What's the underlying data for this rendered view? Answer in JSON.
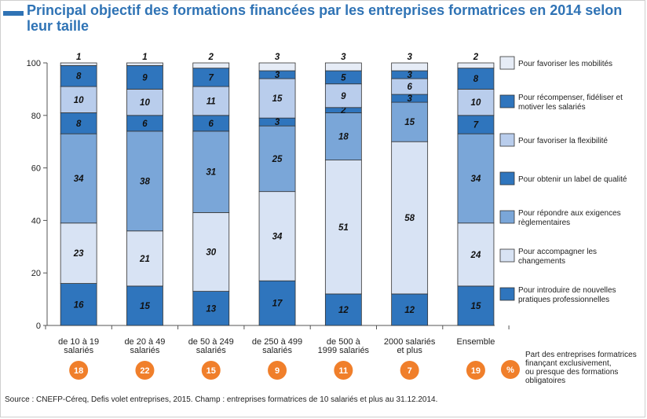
{
  "title": "Principal objectif des formations financées par les entreprises formatrices en 2014 selon leur taille",
  "source": "Source : CNEFP-Céreq, Defis volet entreprises, 2015. Champ : entreprises formatrices de 10 salariés et plus au 31.12.2014.",
  "colors": {
    "dark_blue": "#2f75bd",
    "mid_blue": "#7aa6d8",
    "light_blue": "#b9cdec",
    "pale_blue": "#d8e3f4",
    "badge": "#f07f2b"
  },
  "badge_note": {
    "symbol": "%",
    "lines": [
      "Part des entreprises formatrices",
      "finançant exclusivement,",
      "ou presque des formations",
      "obligatoires"
    ]
  },
  "chart_data": {
    "type": "bar",
    "stacked": true,
    "ylim": [
      0,
      100
    ],
    "yticks": [
      0,
      20,
      40,
      60,
      80,
      100
    ],
    "grid": false,
    "legend_position": "right",
    "categories": [
      [
        "de 10 à 19",
        "salariés"
      ],
      [
        "de 20 à 49",
        "salariés"
      ],
      [
        "de 50 à 249",
        "salariés"
      ],
      [
        "de 250 à 499",
        "salariés"
      ],
      [
        "de 500 à",
        "1999 salariés"
      ],
      [
        "2000 salariés",
        "et plus"
      ],
      [
        "Ensemble"
      ]
    ],
    "series": [
      {
        "name": "Pour introduire de nouvelles pratiques professionnelles",
        "legend_lines": [
          "Pour introduire de nouvelles",
          "pratiques professionnelles"
        ],
        "color": "#2f75bd",
        "values": [
          16,
          15,
          13,
          17,
          12,
          12,
          15
        ]
      },
      {
        "name": "Pour accompagner les changements",
        "legend_lines": [
          "Pour accompagner les",
          "changements"
        ],
        "color": "#d8e3f4",
        "values": [
          23,
          21,
          30,
          34,
          51,
          58,
          24
        ]
      },
      {
        "name": "Pour répondre aux exigences règlementaires",
        "legend_lines": [
          "Pour répondre aux exigences",
          "règlementaires"
        ],
        "color": "#7aa6d8",
        "values": [
          34,
          38,
          31,
          25,
          18,
          15,
          34
        ]
      },
      {
        "name": "Pour obtenir un label de qualité",
        "legend_lines": [
          "Pour obtenir un label de qualité"
        ],
        "color": "#2f75bd",
        "values": [
          8,
          6,
          6,
          3,
          2,
          3,
          7
        ]
      },
      {
        "name": "Pour favoriser la flexibilité",
        "legend_lines": [
          "Pour favoriser la flexibilité"
        ],
        "color": "#b9cdec",
        "values": [
          10,
          10,
          11,
          15,
          9,
          6,
          10
        ]
      },
      {
        "name": "Pour récompenser, fidéliser et motiver les salariés",
        "legend_lines": [
          "Pour récompenser, fidéliser et",
          "motiver les salariés"
        ],
        "color": "#2f75bd",
        "values": [
          8,
          9,
          7,
          3,
          5,
          3,
          8
        ]
      },
      {
        "name": "Pour favoriser les mobilités",
        "legend_lines": [
          "Pour favoriser les mobilités"
        ],
        "color": "#e6ecf6",
        "values": [
          1,
          1,
          2,
          3,
          3,
          3,
          2
        ]
      }
    ],
    "badges": [
      18,
      22,
      15,
      9,
      11,
      7,
      19
    ]
  }
}
